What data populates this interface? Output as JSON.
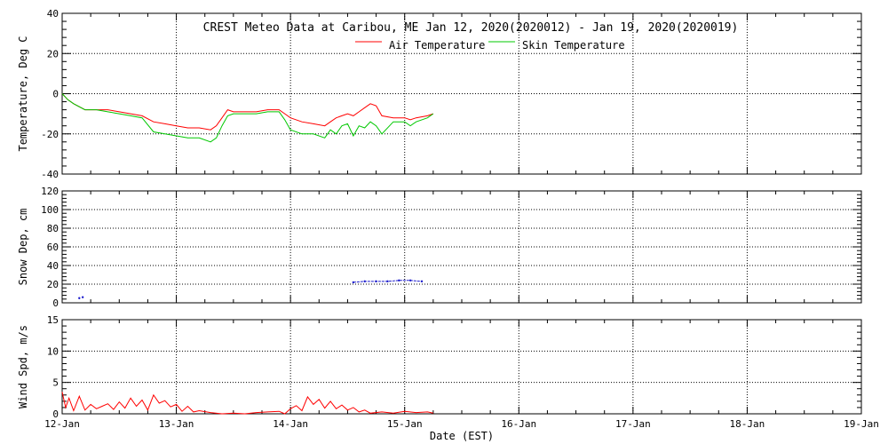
{
  "title": "CREST Meteo Data at Caribou, ME   Jan 12, 2020(2020012) - Jan 19, 2020(2020019)",
  "x_axis_label": "Date (EST)",
  "x_ticks": [
    "12-Jan",
    "13-Jan",
    "14-Jan",
    "15-Jan",
    "16-Jan",
    "17-Jan",
    "18-Jan",
    "19-Jan"
  ],
  "colors": {
    "air": "#ff0000",
    "skin": "#00c800",
    "snow": "#1a1acc",
    "wind": "#ff0000",
    "frame": "#000000"
  },
  "chart_data": [
    {
      "type": "line",
      "ylabel": "Temperature, Deg C",
      "ylim": [
        -40,
        40
      ],
      "yticks": [
        -40,
        -20,
        0,
        20,
        40
      ],
      "xlim": [
        0,
        7
      ],
      "grid": true,
      "legend": "top-center",
      "series": [
        {
          "name": "Air Temperature",
          "color": "#ff0000",
          "x": [
            0,
            0.05,
            0.1,
            0.2,
            0.3,
            0.4,
            0.5,
            0.6,
            0.7,
            0.8,
            0.9,
            1.0,
            1.1,
            1.2,
            1.3,
            1.35,
            1.4,
            1.45,
            1.5,
            1.6,
            1.7,
            1.8,
            1.9,
            1.95,
            2.0,
            2.1,
            2.2,
            2.3,
            2.35,
            2.4,
            2.45,
            2.5,
            2.55,
            2.6,
            2.65,
            2.7,
            2.75,
            2.8,
            2.9,
            3.0,
            3.05,
            3.1,
            3.2,
            3.25
          ],
          "y": [
            0,
            -3,
            -5,
            -8,
            -8,
            -8,
            -9,
            -10,
            -11,
            -14,
            -15,
            -16,
            -17,
            -17,
            -18,
            -16,
            -12,
            -8,
            -9,
            -9,
            -9,
            -8,
            -8,
            -10,
            -12,
            -14,
            -15,
            -16,
            -14,
            -12,
            -11,
            -10,
            -11,
            -9,
            -7,
            -5,
            -6,
            -11,
            -12,
            -12,
            -13,
            -12,
            -11,
            -10
          ]
        },
        {
          "name": "Skin Temperature",
          "color": "#00c800",
          "x": [
            0,
            0.05,
            0.1,
            0.2,
            0.3,
            0.4,
            0.5,
            0.6,
            0.7,
            0.8,
            0.9,
            1.0,
            1.1,
            1.2,
            1.3,
            1.35,
            1.4,
            1.45,
            1.5,
            1.6,
            1.7,
            1.8,
            1.9,
            1.95,
            2.0,
            2.1,
            2.2,
            2.3,
            2.35,
            2.4,
            2.45,
            2.5,
            2.55,
            2.6,
            2.65,
            2.7,
            2.75,
            2.8,
            2.9,
            3.0,
            3.05,
            3.1,
            3.2,
            3.25
          ],
          "y": [
            0,
            -3,
            -5,
            -8,
            -8,
            -9,
            -10,
            -11,
            -12,
            -19,
            -20,
            -21,
            -22,
            -22,
            -24,
            -22,
            -16,
            -11,
            -10,
            -10,
            -10,
            -9,
            -9,
            -13,
            -18,
            -20,
            -20,
            -22,
            -18,
            -20,
            -16,
            -15,
            -21,
            -16,
            -17,
            -14,
            -16,
            -20,
            -14,
            -14,
            -16,
            -14,
            -12,
            -10
          ]
        }
      ]
    },
    {
      "type": "line",
      "ylabel": "Snow Dep, cm",
      "ylim": [
        0,
        120
      ],
      "yticks": [
        0,
        20,
        40,
        60,
        80,
        100,
        120
      ],
      "xlim": [
        0,
        7
      ],
      "grid": true,
      "series": [
        {
          "name": "",
          "color": "#1a1acc",
          "x": [
            0.15,
            0.18,
            2.55,
            2.65,
            2.75,
            2.85,
            2.95,
            3.05,
            3.15
          ],
          "y": [
            5,
            6,
            22,
            23,
            23,
            23,
            24,
            24,
            23
          ]
        }
      ]
    },
    {
      "type": "line",
      "ylabel": "Wind Spd, m/s",
      "ylim": [
        0,
        15
      ],
      "yticks": [
        0,
        5,
        10,
        15
      ],
      "xlim": [
        0,
        7
      ],
      "grid": true,
      "series": [
        {
          "name": "",
          "color": "#ff0000",
          "x": [
            0,
            0.03,
            0.06,
            0.1,
            0.15,
            0.2,
            0.25,
            0.3,
            0.35,
            0.4,
            0.45,
            0.5,
            0.55,
            0.6,
            0.65,
            0.7,
            0.75,
            0.8,
            0.85,
            0.9,
            0.95,
            1.0,
            1.05,
            1.1,
            1.15,
            1.2,
            1.3,
            1.4,
            1.5,
            1.6,
            1.7,
            1.8,
            1.9,
            1.95,
            2.0,
            2.05,
            2.1,
            2.15,
            2.2,
            2.25,
            2.3,
            2.35,
            2.4,
            2.45,
            2.5,
            2.55,
            2.6,
            2.65,
            2.7,
            2.8,
            2.9,
            3.0,
            3.1,
            3.2,
            3.25
          ],
          "y": [
            3.5,
            1,
            2.5,
            0.5,
            2.8,
            0.6,
            1.5,
            0.8,
            1.2,
            1.6,
            0.7,
            1.9,
            0.9,
            2.5,
            1.2,
            2.2,
            0.6,
            3,
            1.7,
            2.1,
            1.1,
            1.5,
            0.4,
            1.2,
            0.3,
            0.5,
            0.2,
            0,
            0.1,
            0,
            0.2,
            0.3,
            0.4,
            0,
            0.8,
            1.3,
            0.5,
            2.7,
            1.5,
            2.3,
            0.9,
            2.0,
            0.8,
            1.4,
            0.6,
            1.0,
            0.3,
            0.6,
            0.1,
            0.3,
            0.1,
            0.4,
            0.2,
            0.3,
            0.1
          ]
        }
      ]
    }
  ]
}
